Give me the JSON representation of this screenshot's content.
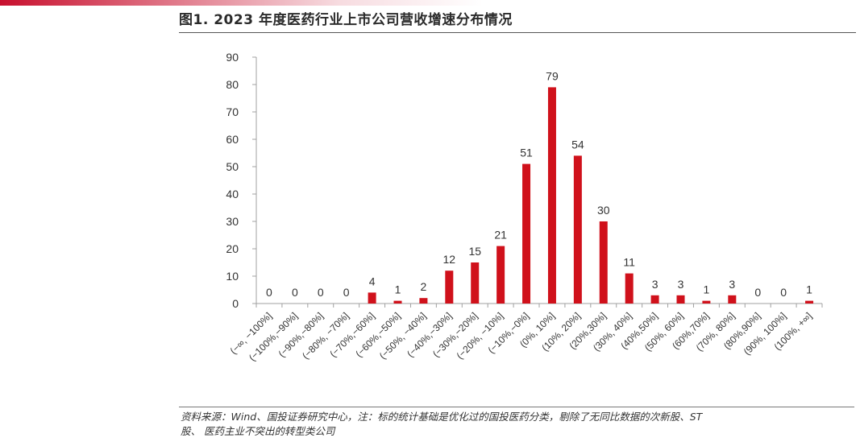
{
  "figure": {
    "title": "图1. 2023 年度医药行业上市公司营收增速分布情况",
    "accent_color": "#c8102e"
  },
  "chart_data": {
    "type": "bar",
    "categories": [
      "(−∞, −100%]",
      "(−100%,−90%]",
      "(−90%,−80%]",
      "(−80%, −70%]",
      "(−70%,−60%]",
      "(−60%,−50%]",
      "(−50%, −40%]",
      "(−40%,−30%]",
      "(−30%,−20%]",
      "(−20%, −10%]",
      "(−10%,−0%]",
      "(0%, 10%]",
      "(10%, 20%]",
      "(20%,30%]",
      "(30%, 40%]",
      "(40%,50%]",
      "(50%, 60%]",
      "(60%,70%]",
      "(70%, 80%]",
      "(80%,90%]",
      "(90%, 100%]",
      "(100%, +∞]"
    ],
    "values": [
      0,
      0,
      0,
      0,
      4,
      1,
      2,
      12,
      15,
      21,
      51,
      79,
      54,
      30,
      11,
      3,
      3,
      1,
      3,
      0,
      0,
      1
    ],
    "data_labels": [
      "0",
      "0",
      "0",
      "0",
      "4",
      "1",
      "2",
      "12",
      "15",
      "21",
      "51",
      "79",
      "54",
      "30",
      "11",
      "3",
      "3",
      "1",
      "3",
      "0",
      "0",
      "1"
    ],
    "yticks": [
      "0",
      "10",
      "20",
      "30",
      "40",
      "50",
      "60",
      "70",
      "80",
      "90"
    ],
    "ylim": [
      0,
      90
    ],
    "bar_color": "#d0111b",
    "grid": false,
    "legend": "none"
  },
  "footer": {
    "source_line1": "资料来源：Wind、国投证券研究中心，注：标的统计基础是优化过的国投医药分类，剔除了无同比数据的次新股、ST",
    "source_line2": "股、 医药主业不突出的转型类公司"
  }
}
